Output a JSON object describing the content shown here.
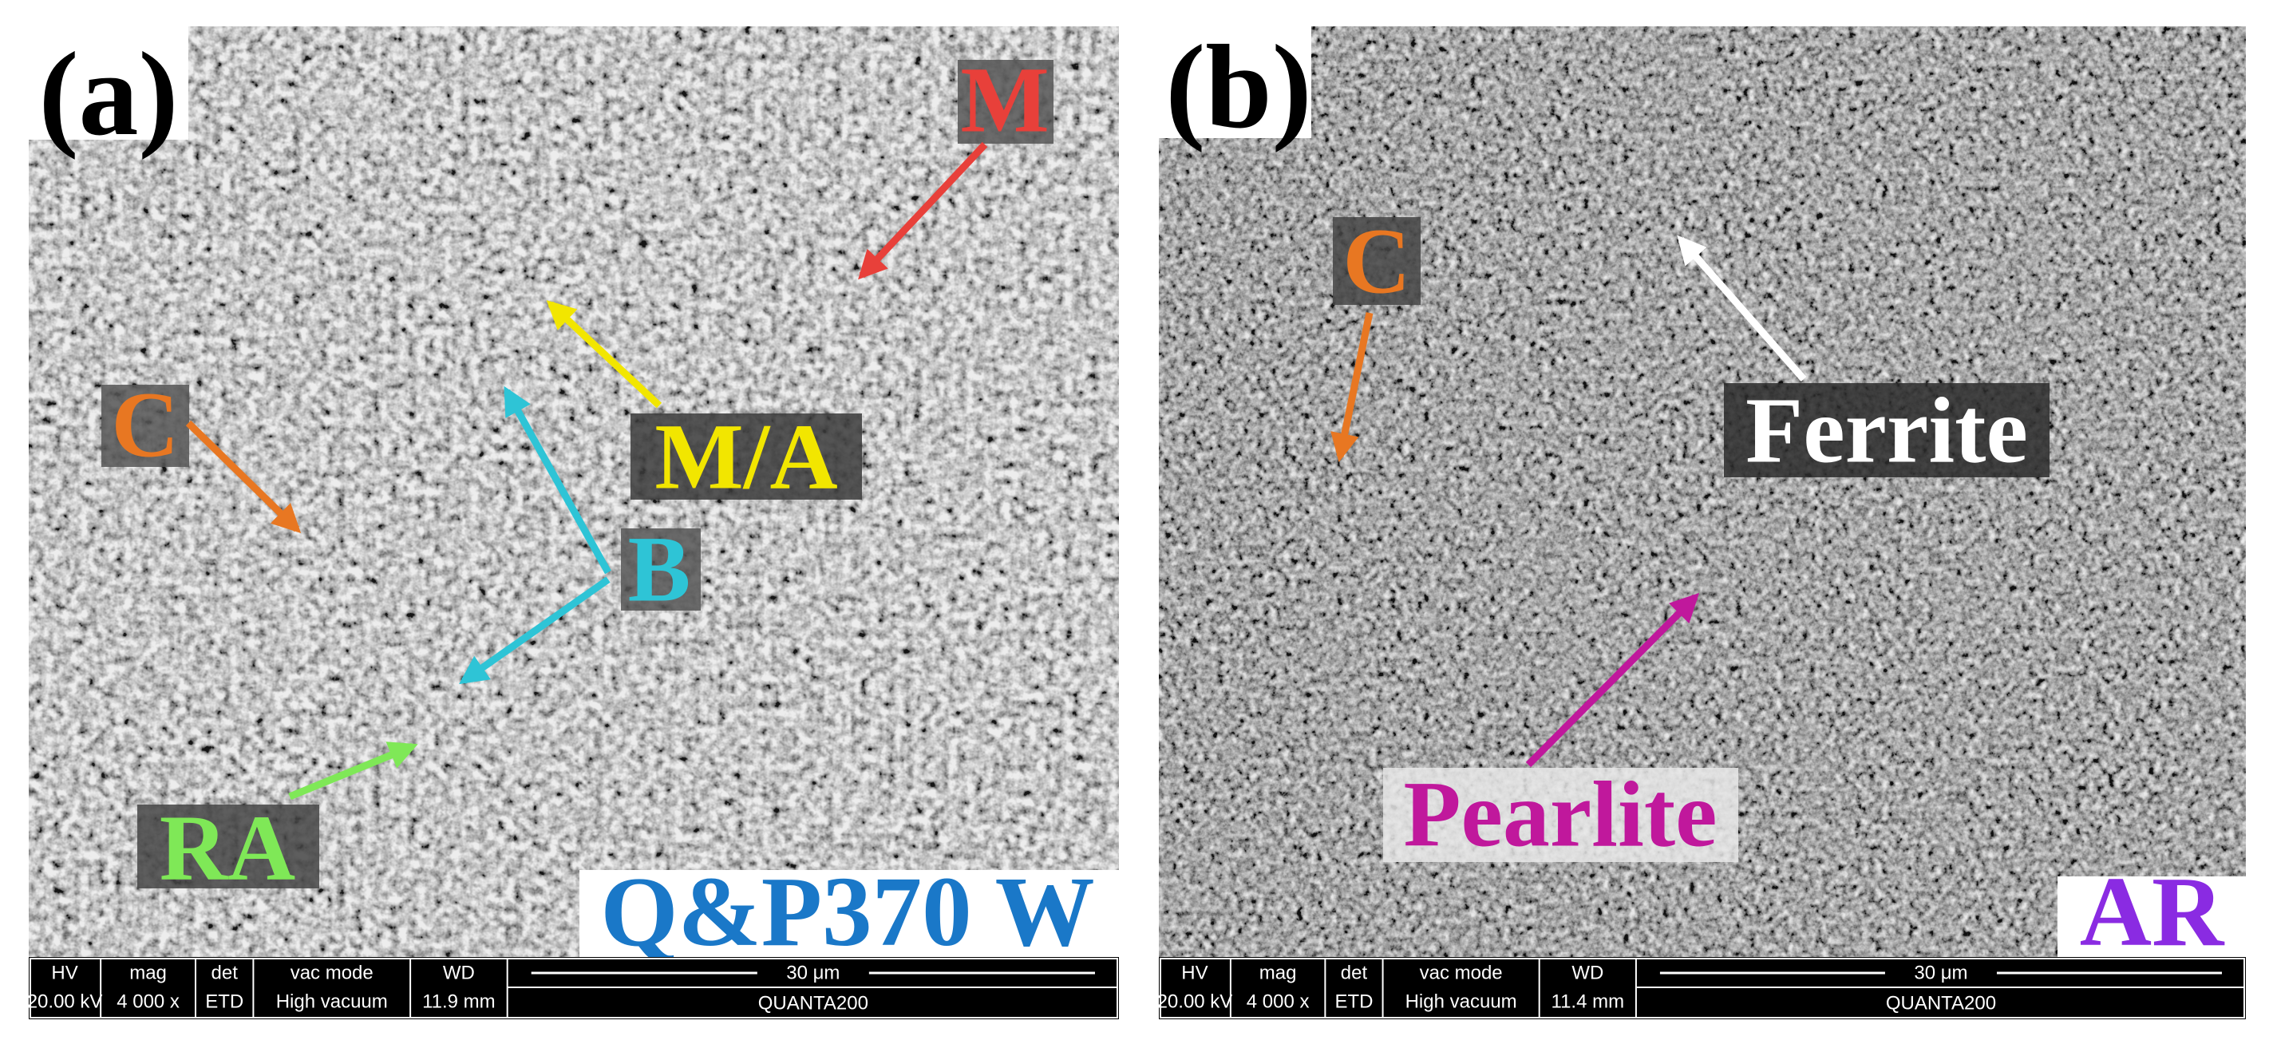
{
  "panels": [
    {
      "label": "(a)",
      "sample": "Q&P370 W",
      "annotations": [
        "M",
        "M/A",
        "C",
        "B",
        "RA"
      ],
      "info": {
        "headers": [
          "HV",
          "mag",
          "det",
          "vac mode",
          "WD"
        ],
        "values": [
          "20.00 kV",
          "4 000 x",
          "ETD",
          "High vacuum",
          "11.9 mm"
        ],
        "scale": "30 μm",
        "instrument": "QUANTA200"
      }
    },
    {
      "label": "(b)",
      "sample": "AR",
      "annotations": [
        "C",
        "Ferrite",
        "Pearlite"
      ],
      "info": {
        "headers": [
          "HV",
          "mag",
          "det",
          "vac mode",
          "WD"
        ],
        "values": [
          "20.00 kV",
          "4 000 x",
          "ETD",
          "High vacuum",
          "11.4 mm"
        ],
        "scale": "30 μm",
        "instrument": "QUANTA200"
      }
    }
  ]
}
